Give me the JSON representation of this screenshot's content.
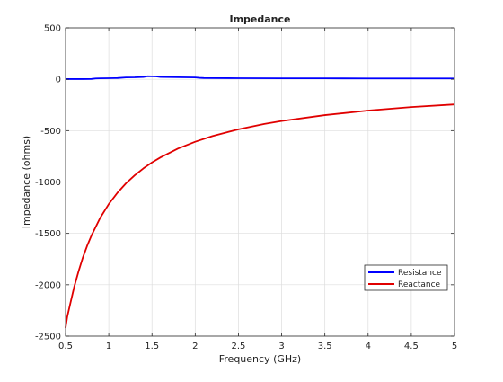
{
  "chart_data": {
    "type": "line",
    "title": "Impedance",
    "xlabel": "Frequency (GHz)",
    "ylabel": "Impedance (ohms)",
    "xlim": [
      0.5,
      5
    ],
    "ylim": [
      -2500,
      500
    ],
    "xticks": [
      0.5,
      1,
      1.5,
      2,
      2.5,
      3,
      3.5,
      4,
      4.5,
      5
    ],
    "yticks": [
      -2500,
      -2000,
      -1500,
      -1000,
      -500,
      0,
      500
    ],
    "grid": true,
    "legend": {
      "position": "bottom-right"
    },
    "series": [
      {
        "name": "Resistance",
        "color": "#0000ff",
        "x": [
          0.5,
          0.6,
          0.7,
          0.8,
          0.85,
          0.9,
          1.0,
          1.1,
          1.2,
          1.3,
          1.4,
          1.45,
          1.5,
          1.55,
          1.6,
          1.7,
          1.8,
          1.9,
          2.0,
          2.05,
          2.1,
          2.5,
          3.0,
          3.5,
          4.0,
          4.5,
          5.0
        ],
        "y": [
          2,
          2,
          2,
          3,
          8,
          9,
          10,
          12,
          18,
          19,
          22,
          30,
          29,
          28,
          22,
          21,
          20,
          19,
          18,
          14,
          12,
          10,
          9,
          9,
          8,
          8,
          8
        ]
      },
      {
        "name": "Reactance",
        "color": "#e00000",
        "x": [
          0.5,
          0.52,
          0.55,
          0.6,
          0.65,
          0.7,
          0.75,
          0.8,
          0.9,
          1.0,
          1.1,
          1.2,
          1.3,
          1.4,
          1.5,
          1.6,
          1.8,
          2.0,
          2.2,
          2.5,
          2.8,
          3.0,
          3.5,
          4.0,
          4.5,
          5.0
        ],
        "y": [
          -2420,
          -2310,
          -2200,
          -2020,
          -1870,
          -1735,
          -1620,
          -1520,
          -1350,
          -1215,
          -1105,
          -1012,
          -935,
          -868,
          -810,
          -760,
          -675,
          -608,
          -553,
          -487,
          -435,
          -406,
          -349,
          -305,
          -271,
          -245
        ]
      }
    ]
  }
}
